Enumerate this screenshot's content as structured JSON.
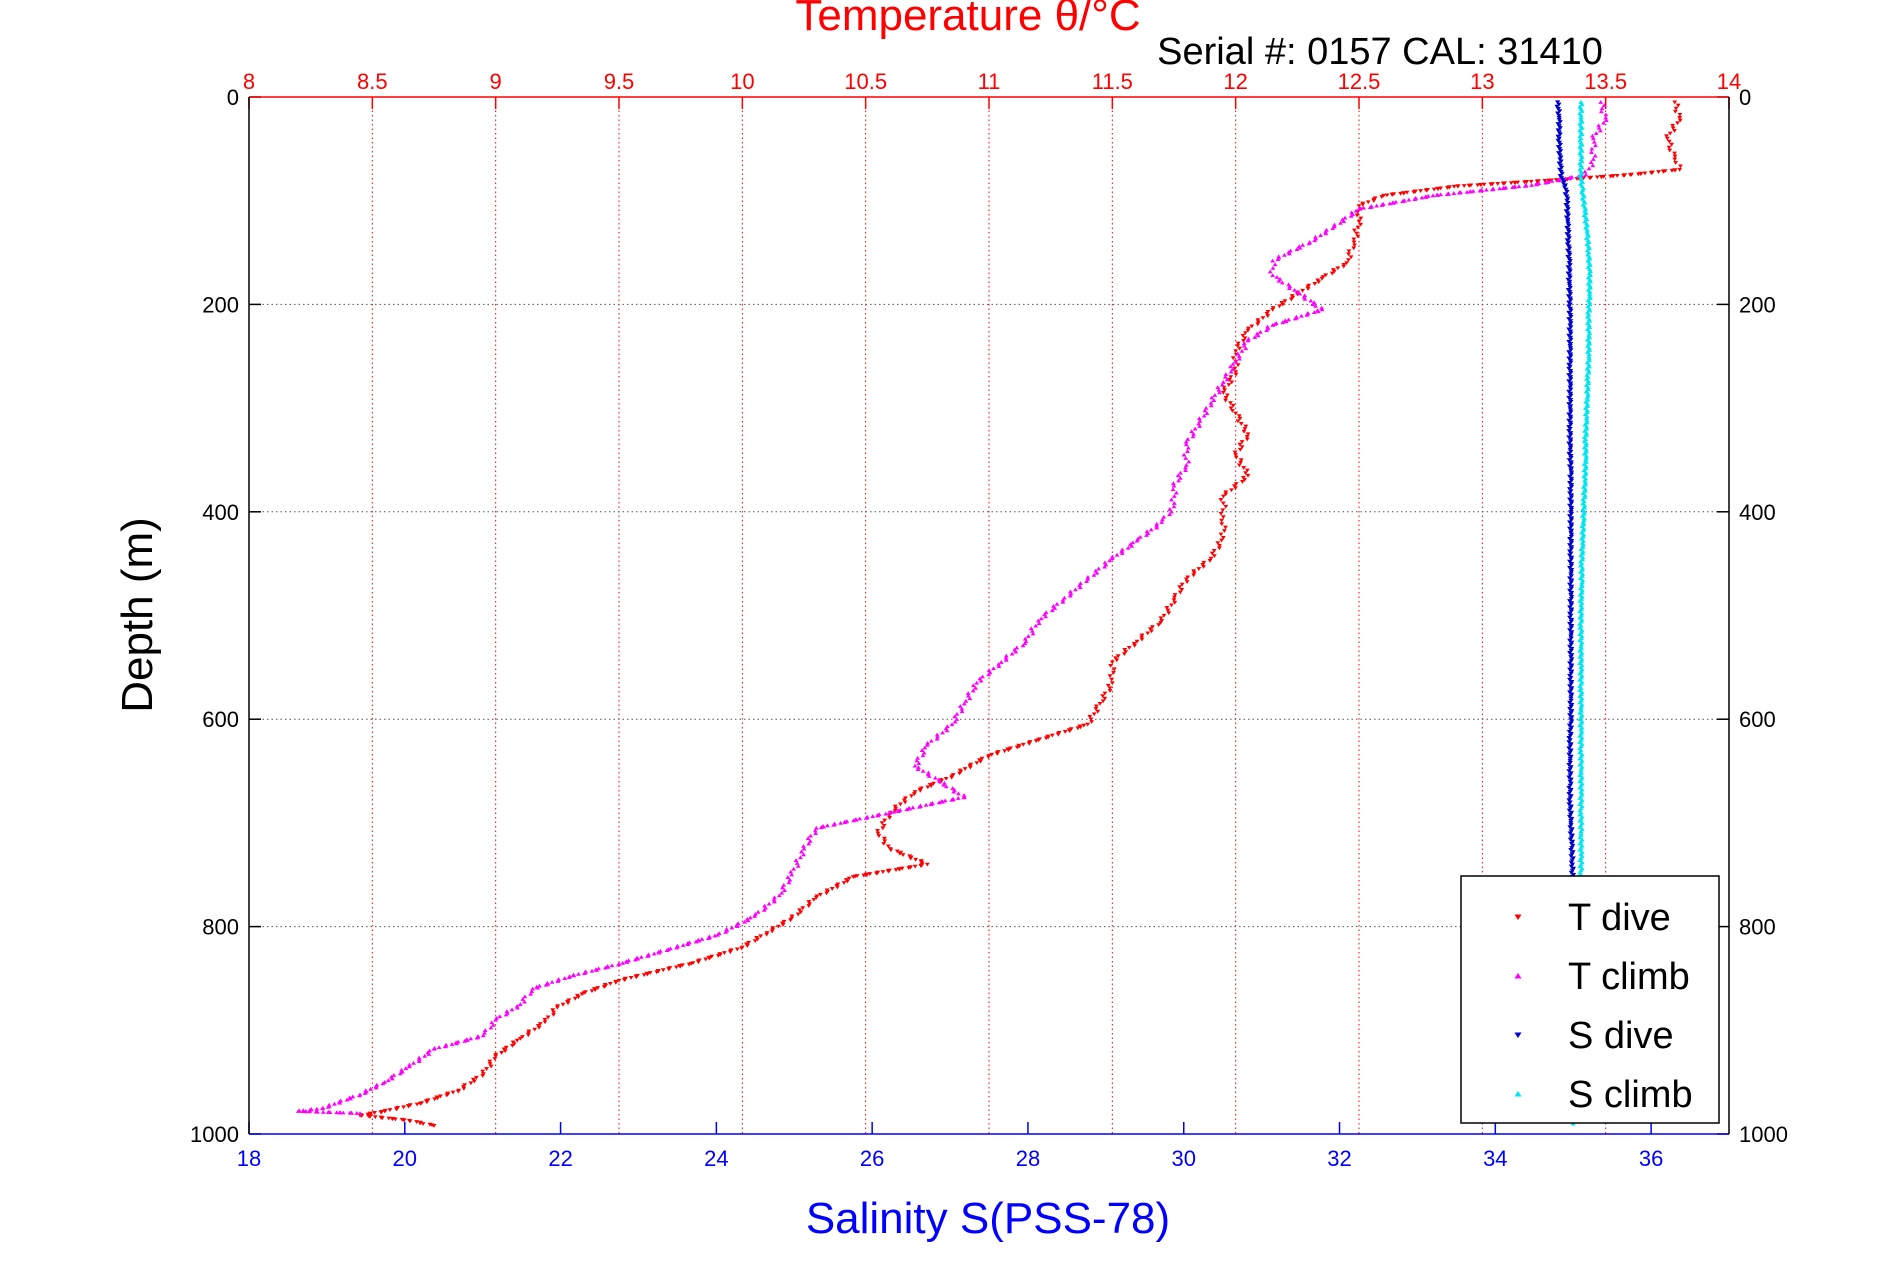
{
  "chart_data": {
    "type": "scatter",
    "title": "Temperature θ/°C",
    "subtitle": "Serial #: 0157  CAL: 31410",
    "ylabel": "Depth (m)",
    "xlabel_bottom": "Salinity S(PSS-78)",
    "xlabel_top": "Temperature θ/°C",
    "y_inverted": true,
    "ylim": [
      0,
      1000
    ],
    "y_ticks": [
      "0",
      "200",
      "400",
      "600",
      "800",
      "1000"
    ],
    "y_tick_values": [
      0,
      200,
      400,
      600,
      800,
      1000
    ],
    "salinity_lim": [
      18,
      37
    ],
    "salinity_ticks": [
      "18",
      "20",
      "22",
      "24",
      "26",
      "28",
      "30",
      "32",
      "34",
      "36"
    ],
    "salinity_tick_values": [
      18,
      20,
      22,
      24,
      26,
      28,
      30,
      32,
      34,
      36
    ],
    "temperature_lim": [
      8,
      14
    ],
    "temperature_ticks": [
      "8",
      "8.5",
      "9",
      "9.5",
      "10",
      "10.5",
      "11",
      "11.5",
      "12",
      "12.5",
      "13",
      "13.5",
      "14"
    ],
    "temperature_tick_values": [
      8,
      8.5,
      9,
      9.5,
      10,
      10.5,
      11,
      11.5,
      12,
      12.5,
      13,
      13.5,
      14
    ],
    "grid": true,
    "legend_position": "bottom-right",
    "series": [
      {
        "name": "T dive",
        "axis": "temperature",
        "color": "#ff0000",
        "marker": "triangle-down",
        "points": [
          [
            13.78,
            5
          ],
          [
            13.8,
            20
          ],
          [
            13.75,
            40
          ],
          [
            13.78,
            60
          ],
          [
            13.8,
            70
          ],
          [
            13.6,
            75
          ],
          [
            13.3,
            80
          ],
          [
            12.9,
            86
          ],
          [
            12.6,
            95
          ],
          [
            12.5,
            105
          ],
          [
            12.5,
            120
          ],
          [
            12.48,
            140
          ],
          [
            12.45,
            160
          ],
          [
            12.35,
            175
          ],
          [
            12.25,
            190
          ],
          [
            12.15,
            205
          ],
          [
            12.05,
            225
          ],
          [
            12.0,
            245
          ],
          [
            12.0,
            265
          ],
          [
            11.95,
            285
          ],
          [
            12.0,
            305
          ],
          [
            12.05,
            325
          ],
          [
            12.0,
            345
          ],
          [
            12.05,
            365
          ],
          [
            11.95,
            385
          ],
          [
            11.95,
            405
          ],
          [
            11.95,
            425
          ],
          [
            11.9,
            445
          ],
          [
            11.8,
            465
          ],
          [
            11.75,
            485
          ],
          [
            11.7,
            505
          ],
          [
            11.6,
            525
          ],
          [
            11.5,
            545
          ],
          [
            11.5,
            565
          ],
          [
            11.45,
            585
          ],
          [
            11.4,
            605
          ],
          [
            11.2,
            620
          ],
          [
            11.0,
            635
          ],
          [
            10.85,
            655
          ],
          [
            10.7,
            670
          ],
          [
            10.6,
            690
          ],
          [
            10.55,
            710
          ],
          [
            10.6,
            725
          ],
          [
            10.75,
            740
          ],
          [
            10.45,
            752
          ],
          [
            10.3,
            772
          ],
          [
            10.2,
            792
          ],
          [
            10.1,
            806
          ],
          [
            10.0,
            820
          ],
          [
            9.8,
            835
          ],
          [
            9.5,
            852
          ],
          [
            9.35,
            865
          ],
          [
            9.25,
            878
          ],
          [
            9.2,
            892
          ],
          [
            9.1,
            908
          ],
          [
            9.0,
            925
          ],
          [
            8.95,
            942
          ],
          [
            8.85,
            958
          ],
          [
            8.7,
            970
          ],
          [
            8.55,
            978
          ],
          [
            8.45,
            982
          ],
          [
            8.65,
            987
          ],
          [
            8.75,
            992
          ]
        ]
      },
      {
        "name": "T climb",
        "axis": "temperature",
        "color": "#ff00ff",
        "marker": "triangle-up",
        "points": [
          [
            13.48,
            5
          ],
          [
            13.5,
            20
          ],
          [
            13.45,
            40
          ],
          [
            13.45,
            60
          ],
          [
            13.42,
            75
          ],
          [
            13.2,
            85
          ],
          [
            12.8,
            95
          ],
          [
            12.5,
            108
          ],
          [
            12.4,
            125
          ],
          [
            12.3,
            140
          ],
          [
            12.15,
            158
          ],
          [
            12.15,
            172
          ],
          [
            12.25,
            188
          ],
          [
            12.35,
            205
          ],
          [
            12.15,
            220
          ],
          [
            12.05,
            235
          ],
          [
            12.0,
            255
          ],
          [
            11.95,
            275
          ],
          [
            11.9,
            295
          ],
          [
            11.85,
            315
          ],
          [
            11.8,
            335
          ],
          [
            11.8,
            355
          ],
          [
            11.75,
            375
          ],
          [
            11.75,
            395
          ],
          [
            11.7,
            410
          ],
          [
            11.6,
            428
          ],
          [
            11.5,
            445
          ],
          [
            11.4,
            465
          ],
          [
            11.3,
            485
          ],
          [
            11.2,
            505
          ],
          [
            11.15,
            525
          ],
          [
            11.05,
            545
          ],
          [
            10.95,
            565
          ],
          [
            10.9,
            585
          ],
          [
            10.85,
            605
          ],
          [
            10.75,
            625
          ],
          [
            10.7,
            645
          ],
          [
            10.8,
            660
          ],
          [
            10.9,
            675
          ],
          [
            10.6,
            690
          ],
          [
            10.3,
            705
          ],
          [
            10.25,
            725
          ],
          [
            10.2,
            750
          ],
          [
            10.15,
            770
          ],
          [
            10.05,
            790
          ],
          [
            9.9,
            808
          ],
          [
            9.7,
            822
          ],
          [
            9.5,
            836
          ],
          [
            9.3,
            848
          ],
          [
            9.15,
            860
          ],
          [
            9.1,
            875
          ],
          [
            9.0,
            890
          ],
          [
            8.95,
            905
          ],
          [
            8.75,
            918
          ],
          [
            8.65,
            935
          ],
          [
            8.55,
            950
          ],
          [
            8.45,
            962
          ],
          [
            8.3,
            975
          ],
          [
            8.2,
            978
          ],
          [
            8.45,
            980
          ]
        ]
      },
      {
        "name": "S dive",
        "axis": "salinity",
        "color": "#0000cc",
        "marker": "triangle-down",
        "points": [
          [
            34.8,
            5
          ],
          [
            34.82,
            20
          ],
          [
            34.82,
            40
          ],
          [
            34.83,
            60
          ],
          [
            34.85,
            78
          ],
          [
            34.9,
            85
          ],
          [
            34.92,
            100
          ],
          [
            34.93,
            120
          ],
          [
            34.94,
            140
          ],
          [
            34.95,
            160
          ],
          [
            34.95,
            180
          ],
          [
            34.96,
            200
          ],
          [
            34.96,
            220
          ],
          [
            34.96,
            240
          ],
          [
            34.96,
            260
          ],
          [
            34.96,
            280
          ],
          [
            34.96,
            300
          ],
          [
            34.96,
            320
          ],
          [
            34.96,
            340
          ],
          [
            34.97,
            360
          ],
          [
            34.97,
            380
          ],
          [
            34.97,
            400
          ],
          [
            34.97,
            420
          ],
          [
            34.97,
            440
          ],
          [
            34.97,
            460
          ],
          [
            34.97,
            480
          ],
          [
            34.97,
            500
          ],
          [
            34.97,
            520
          ],
          [
            34.97,
            540
          ],
          [
            34.97,
            560
          ],
          [
            34.97,
            580
          ],
          [
            34.97,
            600
          ],
          [
            34.96,
            620
          ],
          [
            34.96,
            640
          ],
          [
            34.96,
            660
          ],
          [
            34.96,
            680
          ],
          [
            34.97,
            700
          ],
          [
            34.98,
            720
          ],
          [
            34.99,
            740
          ],
          [
            34.99,
            760
          ],
          [
            34.99,
            780
          ],
          [
            34.99,
            800
          ],
          [
            34.99,
            820
          ],
          [
            34.99,
            840
          ],
          [
            34.99,
            860
          ],
          [
            34.99,
            880
          ],
          [
            34.99,
            900
          ],
          [
            34.99,
            920
          ],
          [
            34.99,
            940
          ],
          [
            34.99,
            960
          ],
          [
            34.99,
            980
          ]
        ]
      },
      {
        "name": "S climb",
        "axis": "salinity",
        "color": "#00e5ee",
        "marker": "triangle-up",
        "points": [
          [
            35.1,
            5
          ],
          [
            35.1,
            20
          ],
          [
            35.1,
            40
          ],
          [
            35.1,
            60
          ],
          [
            35.1,
            78
          ],
          [
            35.12,
            90
          ],
          [
            35.15,
            110
          ],
          [
            35.18,
            130
          ],
          [
            35.2,
            150
          ],
          [
            35.21,
            170
          ],
          [
            35.21,
            190
          ],
          [
            35.2,
            210
          ],
          [
            35.2,
            230
          ],
          [
            35.2,
            250
          ],
          [
            35.19,
            270
          ],
          [
            35.18,
            290
          ],
          [
            35.17,
            310
          ],
          [
            35.16,
            330
          ],
          [
            35.16,
            350
          ],
          [
            35.15,
            370
          ],
          [
            35.14,
            390
          ],
          [
            35.13,
            410
          ],
          [
            35.12,
            430
          ],
          [
            35.11,
            450
          ],
          [
            35.11,
            470
          ],
          [
            35.1,
            490
          ],
          [
            35.1,
            510
          ],
          [
            35.1,
            530
          ],
          [
            35.1,
            550
          ],
          [
            35.1,
            570
          ],
          [
            35.1,
            590
          ],
          [
            35.1,
            610
          ],
          [
            35.1,
            630
          ],
          [
            35.1,
            650
          ],
          [
            35.1,
            670
          ],
          [
            35.1,
            690
          ],
          [
            35.1,
            710
          ],
          [
            35.1,
            730
          ],
          [
            35.1,
            750
          ],
          [
            35.08,
            770
          ],
          [
            35.06,
            790
          ],
          [
            35.04,
            810
          ],
          [
            35.03,
            830
          ],
          [
            35.02,
            850
          ],
          [
            35.01,
            870
          ],
          [
            35.0,
            890
          ],
          [
            35.0,
            910
          ],
          [
            35.0,
            930
          ],
          [
            35.0,
            950
          ],
          [
            35.0,
            970
          ],
          [
            35.0,
            990
          ]
        ]
      }
    ],
    "legend": [
      {
        "label": "T dive",
        "color": "#ff0000",
        "marker": "triangle-down"
      },
      {
        "label": "T climb",
        "color": "#ff00ff",
        "marker": "triangle-up"
      },
      {
        "label": "S dive",
        "color": "#0000cc",
        "marker": "triangle-down"
      },
      {
        "label": "S climb",
        "color": "#00e5ee",
        "marker": "triangle-up"
      }
    ],
    "colors": {
      "temperature_axis": "#ff0000",
      "salinity_axis": "#0000ff",
      "depth_axis": "#000000",
      "depth_grid": "#555555",
      "temperature_grid": "#ff0000",
      "salinity_grid": "#0000ff"
    }
  }
}
